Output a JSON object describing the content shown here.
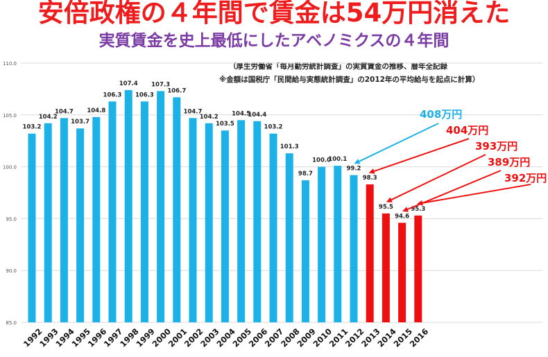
{
  "title": "安倍政権の４年間で賃金は54万円消えた",
  "subtitle": "実質賃金を史上最低にしたアベノミクスの４年間",
  "notes": [
    "（厚生労働省「毎月勤労統計調査」の実質賃金の推移、暦年全記録",
    "※金額は国税庁「民間給与実態統計調査」の2012年の平均給与を起点に計算）"
  ],
  "colors": {
    "blue": "#1cb2e8",
    "red": "#ee1010",
    "title": "#ee1c1c",
    "subtitle": "#7a3aa3"
  },
  "chart_data": {
    "type": "bar",
    "categories": [
      "1992",
      "1993",
      "1994",
      "1995",
      "1996",
      "1997",
      "1998",
      "1999",
      "2000",
      "2001",
      "2002",
      "2003",
      "2004",
      "2005",
      "2006",
      "2007",
      "2008",
      "2009",
      "2010",
      "2011",
      "2012",
      "2013",
      "2014",
      "2015",
      "2016"
    ],
    "values": [
      103.2,
      104.2,
      104.7,
      103.7,
      104.8,
      106.3,
      107.4,
      106.3,
      107.3,
      106.7,
      104.7,
      104.2,
      103.5,
      104.5,
      104.4,
      103.2,
      101.3,
      98.7,
      100.0,
      100.1,
      99.2,
      98.3,
      95.5,
      94.6,
      95.3
    ],
    "value_labels": [
      "103.2",
      "104.2",
      "104.7",
      "103.7",
      "104.8",
      "106.3",
      "107.4",
      "106.3",
      "107.3",
      "106.7",
      "104.7",
      "104.2",
      "103.5",
      "104.5",
      "104.4",
      "103.2",
      "101.3",
      "98.7",
      "100.0",
      "100.1",
      "99.2",
      "98.3",
      "95.5",
      "94.6",
      "95.3"
    ],
    "highlight_from": "2013",
    "ylim": [
      85.0,
      110.0
    ],
    "yticks": [
      "85.0",
      "90.0",
      "95.0",
      "100.0",
      "105.0",
      "110.0"
    ],
    "annotations": [
      {
        "text": "408万円",
        "target": "2012",
        "color": "blue"
      },
      {
        "text": "404万円",
        "target": "2013",
        "color": "red"
      },
      {
        "text": "393万円",
        "target": "2014",
        "color": "red"
      },
      {
        "text": "389万円",
        "target": "2015",
        "color": "red"
      },
      {
        "text": "392万円",
        "target": "2016",
        "color": "red"
      }
    ],
    "grid": true,
    "legend": "none"
  }
}
